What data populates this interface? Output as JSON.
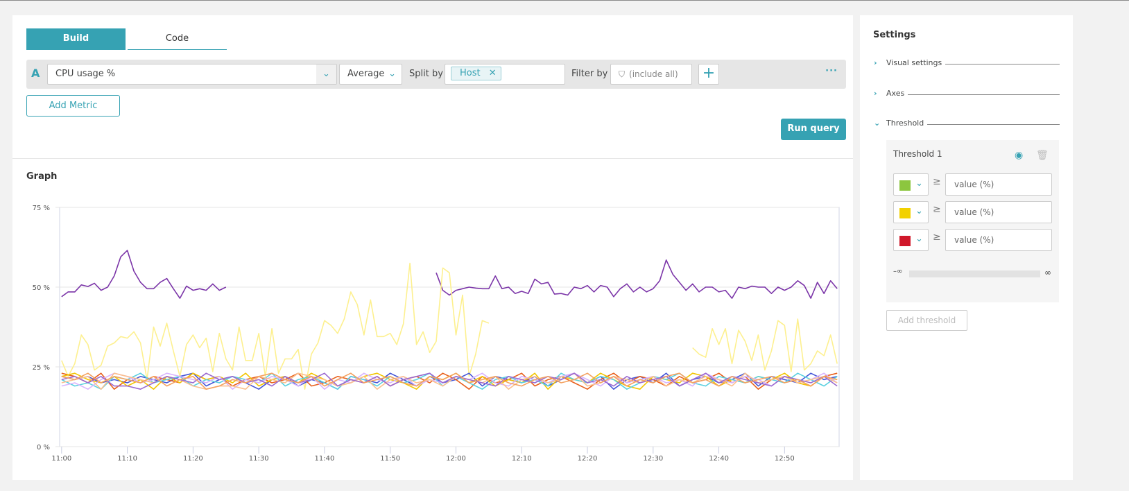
{
  "tabs": {
    "build": "Build",
    "code": "Code"
  },
  "query": {
    "letter": "A",
    "metric": "CPU usage %",
    "aggregation": "Average",
    "split_label": "Split by",
    "split_chip": "Host",
    "filter_label": "Filter by",
    "filter_placeholder": "(include all)"
  },
  "buttons": {
    "add_metric": "Add Metric",
    "run_query": "Run query"
  },
  "graph_title": "Graph",
  "settings": {
    "title": "Settings",
    "sections": [
      "Visual settings",
      "Axes",
      "Threshold"
    ],
    "threshold": {
      "title": "Threshold 1",
      "rows": [
        {
          "color": "#8cc63f",
          "placeholder": "value (%)"
        },
        {
          "color": "#f2d100",
          "placeholder": "value (%)"
        },
        {
          "color": "#d0182a",
          "placeholder": "value (%)"
        }
      ],
      "symbol": "≥",
      "min": "–∞",
      "max": "∞",
      "add_label": "Add threshold"
    }
  },
  "chart_data": {
    "type": "line",
    "ylim": [
      0,
      75
    ],
    "yticks": [
      "0 %",
      "25 %",
      "50 %",
      "75 %"
    ],
    "ytick_values": [
      0,
      25,
      50,
      75
    ],
    "xrange": [
      "11:00",
      "12:58"
    ],
    "xticks": [
      "11:00",
      "11:10",
      "11:20",
      "11:30",
      "11:40",
      "11:50",
      "12:00",
      "12:10",
      "12:20",
      "12:30",
      "12:40",
      "12:50"
    ],
    "grid": "horizontal",
    "series": [
      {
        "color": "#7b35a8",
        "start": "11:00",
        "step_min": 1,
        "values": [
          47,
          48.5,
          48.5,
          50.7,
          50.2,
          51.2,
          49,
          50,
          53.5,
          59.5,
          61.5,
          55,
          51.5,
          49.5,
          49.5,
          51.5,
          52.7,
          49.5,
          46.5,
          50.3,
          49,
          49.5,
          49,
          51,
          49,
          50
        ]
      },
      {
        "color": "#7b35a8",
        "start": "11:57",
        "step_min": 1,
        "values": [
          54.5,
          49,
          47.5,
          49,
          49.5,
          50,
          49.7,
          49.5,
          49.5,
          53.5,
          49.5,
          50,
          48,
          48.7,
          48,
          52.5,
          51,
          51.5,
          47.8,
          48,
          47.5,
          50,
          49.5,
          50.5,
          48.5,
          50.5,
          50,
          47,
          49.5,
          51,
          48.5,
          50,
          48.5,
          49.5,
          52,
          58.5,
          54,
          51.5,
          49,
          51,
          48.5,
          50,
          50,
          48.5,
          49,
          46.5,
          50,
          49.5,
          50.3,
          50,
          50,
          48,
          50,
          49,
          50,
          52,
          50.5,
          46.5,
          51.5,
          48,
          52,
          49.5
        ]
      },
      {
        "color": "#fdf08f",
        "start": "11:00",
        "step_min": 1,
        "values": [
          27,
          22,
          26,
          35,
          32,
          24,
          25.5,
          31.5,
          32.5,
          34.5,
          34,
          36,
          32.5,
          21,
          37.5,
          31.5,
          38.7,
          30,
          22,
          32,
          35,
          31,
          34,
          23.5,
          35.5,
          27.5,
          24,
          37.5,
          27,
          27,
          35.5,
          22,
          37,
          23,
          27.5,
          27.5,
          30.5,
          18,
          29,
          32.5,
          39.5,
          38,
          35.5,
          40,
          48.5,
          44.5,
          35,
          46,
          34.5,
          34.5,
          35.5,
          32,
          38.5,
          57.5,
          32,
          36,
          29.5,
          33,
          56,
          54.5,
          35,
          47.5,
          22,
          29,
          39.5,
          38.7
        ]
      },
      {
        "color": "#fdf08f",
        "start": "12:36",
        "step_min": 1,
        "values": [
          31,
          29,
          28,
          37,
          32,
          37,
          26,
          36.5,
          33,
          27,
          35,
          24,
          30,
          39.5,
          38,
          23.5,
          40,
          24,
          26,
          30,
          28.5,
          35,
          26
        ]
      },
      {
        "color": "#4556d7",
        "start": "11:00",
        "step_min": 2,
        "values": [
          22,
          21,
          22,
          20,
          21,
          20,
          22,
          21,
          20,
          22,
          23,
          19,
          21,
          22,
          20,
          18,
          21,
          22,
          19,
          21,
          20,
          18,
          22,
          21,
          20,
          23,
          21,
          19,
          22,
          20,
          21,
          23,
          19,
          22,
          21,
          20,
          22,
          19,
          21,
          23,
          20,
          22,
          18,
          21,
          22,
          20,
          23,
          19,
          21,
          22,
          20,
          21,
          23,
          19,
          22,
          21,
          20,
          23,
          21,
          22
        ]
      },
      {
        "color": "#e8601c",
        "start": "11:00",
        "step_min": 2,
        "values": [
          23,
          22,
          20,
          23,
          18,
          21,
          20,
          22,
          21,
          20,
          23,
          21,
          22,
          19,
          21,
          22,
          20,
          21,
          23,
          19,
          20,
          22,
          21,
          20,
          22,
          19,
          21,
          22,
          20,
          23,
          21,
          18,
          22,
          20,
          21,
          23,
          19,
          21,
          22,
          20,
          18,
          21,
          23,
          20,
          22,
          21,
          19,
          22,
          20,
          21,
          23,
          20,
          22,
          18,
          21,
          22,
          20,
          19,
          22,
          23
        ]
      },
      {
        "color": "#f2c500",
        "start": "11:00",
        "step_min": 2,
        "values": [
          22,
          23,
          21,
          20,
          22,
          19,
          21,
          18,
          22,
          20,
          23,
          21,
          22,
          20,
          23,
          19,
          21,
          22,
          20,
          23,
          21,
          19,
          20,
          22,
          23,
          21,
          20,
          18,
          22,
          21,
          23,
          20,
          22,
          19,
          21,
          20,
          23,
          18,
          22,
          21,
          20,
          23,
          21,
          19,
          18,
          22,
          21,
          20,
          23,
          22,
          19,
          21,
          20,
          22,
          21,
          23,
          20,
          19,
          22,
          21
        ]
      },
      {
        "color": "#5bd0e0",
        "start": "11:00",
        "step_min": 2,
        "values": [
          21,
          19,
          20,
          18,
          22,
          21,
          23,
          20,
          21,
          22,
          19,
          21,
          20,
          22,
          21,
          20,
          23,
          19,
          21,
          22,
          20,
          18,
          22,
          21,
          19,
          22,
          20,
          21,
          23,
          19,
          22,
          20,
          18,
          21,
          22,
          20,
          21,
          19,
          23,
          21,
          20,
          22,
          21,
          18,
          20,
          22,
          21,
          23,
          20,
          19,
          22,
          21,
          20,
          22,
          21,
          20,
          23,
          21,
          19,
          22
        ]
      },
      {
        "color": "#d8b4fe",
        "start": "11:00",
        "step_min": 2,
        "values": [
          19,
          20,
          18,
          21,
          23,
          22,
          20,
          21,
          23,
          22,
          21,
          20,
          22,
          18,
          21,
          20,
          22,
          21,
          19,
          22,
          18,
          21,
          20,
          23,
          21,
          20,
          22,
          19,
          21,
          20,
          22,
          21,
          23,
          20,
          19,
          22,
          21,
          20,
          22,
          23,
          21,
          19,
          22,
          20,
          21,
          22,
          20,
          21,
          19,
          23,
          21,
          20,
          22,
          21,
          19,
          22,
          20,
          21,
          23,
          20
        ]
      },
      {
        "color": "#fbc08f",
        "start": "11:00",
        "step_min": 2,
        "values": [
          20,
          21,
          22,
          18,
          23,
          22,
          21,
          20,
          22,
          21,
          19,
          18,
          19,
          19,
          18,
          22,
          21,
          20,
          23,
          22,
          21,
          19,
          20,
          22,
          18,
          21,
          22,
          20,
          21,
          19,
          22,
          21,
          20,
          22,
          18,
          21,
          22,
          20,
          21,
          23,
          19,
          20,
          22,
          21,
          20,
          22,
          19,
          21,
          20,
          22,
          21,
          19,
          23,
          20,
          21,
          22,
          20,
          21,
          22,
          20
        ]
      },
      {
        "color": "#9b6ad0",
        "start": "11:00",
        "step_min": 2,
        "values": [
          21,
          22,
          20,
          22,
          19,
          19,
          18,
          20,
          22,
          21,
          20,
          23,
          21,
          22,
          20,
          21,
          19,
          22,
          20,
          21,
          23,
          19,
          21,
          20,
          22,
          19,
          21,
          22,
          23,
          20,
          22,
          21,
          20,
          19,
          22,
          21,
          20,
          22,
          21,
          23,
          20,
          21,
          19,
          22,
          20,
          21,
          22,
          19,
          21,
          23,
          20,
          22,
          21,
          20,
          19,
          22,
          21,
          20,
          22,
          19
        ]
      },
      {
        "color": "#f4a261",
        "start": "11:00",
        "step_min": 2,
        "values": [
          22,
          21,
          23,
          20,
          22,
          21,
          20,
          22,
          19,
          21,
          22,
          18,
          19,
          21,
          20,
          22,
          23,
          21,
          20,
          22,
          19,
          21,
          23,
          20,
          21,
          22,
          20,
          19,
          22,
          21,
          23,
          20,
          21,
          22,
          20,
          19,
          21,
          22,
          20,
          21,
          23,
          20,
          22,
          19,
          21,
          20,
          22,
          23,
          20,
          21,
          19,
          22,
          20,
          21,
          22,
          20,
          21,
          19,
          22,
          21
        ]
      }
    ]
  }
}
